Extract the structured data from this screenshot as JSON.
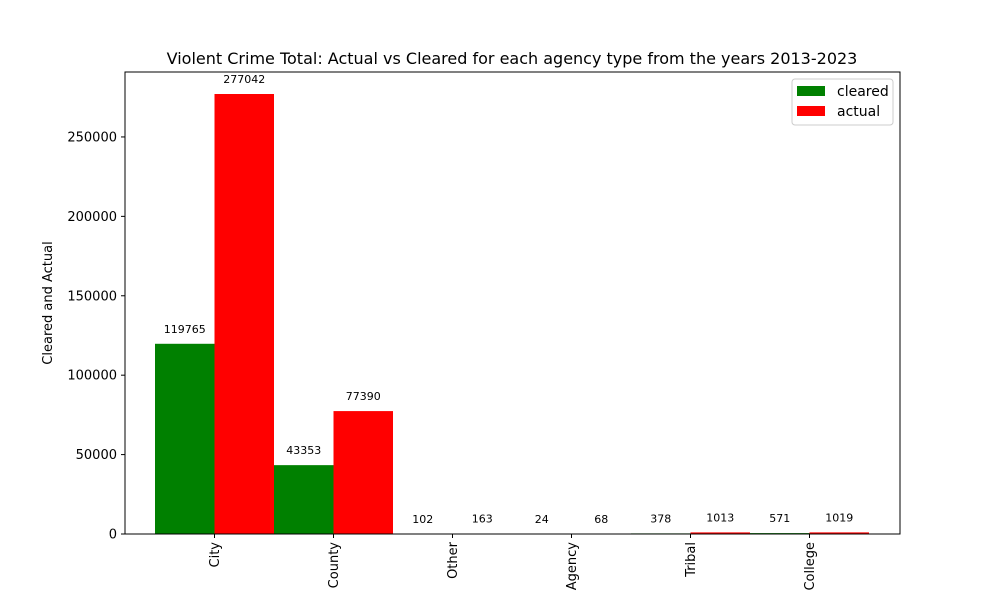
{
  "chart_data": {
    "type": "bar",
    "title": "Violent Crime Total: Actual vs Cleared for each agency type from the years 2013-2023",
    "xlabel": "",
    "ylabel": "Cleared and Actual",
    "categories": [
      "City",
      "County",
      "Other",
      "Agency",
      "Tribal",
      "College"
    ],
    "series": [
      {
        "name": "cleared",
        "color": "#008000",
        "values": [
          119765,
          43353,
          102,
          24,
          378,
          571
        ]
      },
      {
        "name": "actual",
        "color": "#ff0000",
        "values": [
          277042,
          77390,
          163,
          68,
          1013,
          1019
        ]
      }
    ],
    "yticks": [
      0,
      50000,
      100000,
      150000,
      200000,
      250000
    ],
    "ylim": [
      0,
      290894
    ],
    "legend": "top-right",
    "grid": false
  }
}
